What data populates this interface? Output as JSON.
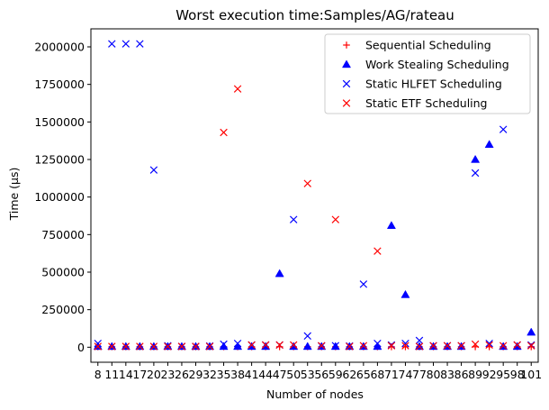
{
  "chart_data": {
    "type": "scatter",
    "title": "Worst execution time:Samples/AG/rateau",
    "xlabel": "Number of nodes",
    "ylabel": "Time (µs)",
    "categories": [
      "8",
      "11",
      "14",
      "17",
      "20",
      "23",
      "26",
      "29",
      "32",
      "35",
      "38",
      "41",
      "44",
      "47",
      "50",
      "53",
      "56",
      "59",
      "62",
      "65",
      "68",
      "71",
      "74",
      "77",
      "80",
      "83",
      "86",
      "89",
      "92",
      "95",
      "98",
      "101"
    ],
    "yticks": [
      0,
      250000,
      500000,
      750000,
      1000000,
      1250000,
      1500000,
      1750000,
      2000000
    ],
    "ytick_labels": [
      "0",
      "250000",
      "500000",
      "750000",
      "1000000",
      "1250000",
      "1500000",
      "1750000",
      "2000000"
    ],
    "ylim": [
      -100000,
      2120000
    ],
    "grid": false,
    "legend_position": "top-right",
    "series": [
      {
        "name": "Sequential Scheduling",
        "marker": "plus",
        "color": "#ff0000",
        "values": [
          3000,
          3000,
          3000,
          3000,
          3000,
          3000,
          3000,
          3000,
          3000,
          3000,
          3000,
          3000,
          3000,
          3000,
          3000,
          3000,
          3000,
          3000,
          3000,
          3000,
          3000,
          3000,
          3000,
          3000,
          3000,
          3000,
          3000,
          3000,
          3000,
          3000,
          3000,
          3000
        ]
      },
      {
        "name": "Work Stealing Scheduling",
        "marker": "triangle",
        "color": "#0000ff",
        "values": [
          5000,
          5000,
          5000,
          5000,
          5000,
          5000,
          5000,
          5000,
          5000,
          5000,
          5000,
          5000,
          5000,
          490000,
          5000,
          5000,
          5000,
          5000,
          5000,
          5000,
          5000,
          810000,
          350000,
          5000,
          5000,
          5000,
          5000,
          1250000,
          1350000,
          5000,
          5000,
          100000
        ]
      },
      {
        "name": "Static HLFET Scheduling",
        "marker": "x",
        "color": "#0000ff",
        "values": [
          25000,
          2020000,
          2020000,
          2020000,
          1180000,
          10000,
          5000,
          5000,
          8000,
          20000,
          25000,
          15000,
          15000,
          15000,
          850000,
          75000,
          8000,
          10000,
          8000,
          420000,
          25000,
          15000,
          25000,
          45000,
          10000,
          10000,
          10000,
          1160000,
          25000,
          1450000,
          15000,
          15000
        ]
      },
      {
        "name": "Static ETF Scheduling",
        "marker": "x",
        "color": "#ff0000",
        "values": [
          5000,
          5000,
          5000,
          5000,
          5000,
          5000,
          5000,
          5000,
          5000,
          1430000,
          1720000,
          15000,
          15000,
          15000,
          15000,
          1090000,
          10000,
          850000,
          5000,
          10000,
          640000,
          10000,
          10000,
          5000,
          10000,
          10000,
          10000,
          20000,
          15000,
          10000,
          15000,
          10000
        ]
      }
    ]
  }
}
